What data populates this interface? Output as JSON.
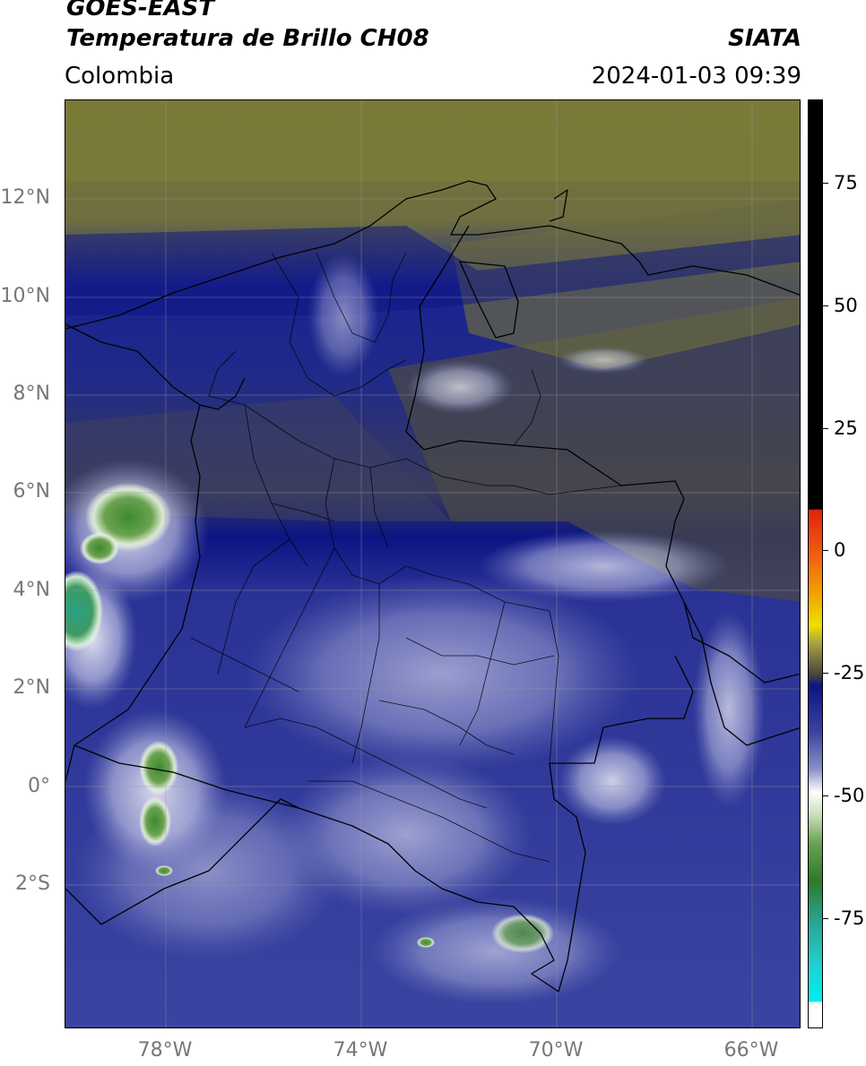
{
  "header": {
    "title_line1": "GOES-EAST",
    "title_line2": "Temperatura de Brillo CH08",
    "region": "Colombia",
    "organization": "SIATA",
    "datetime": "2024-01-03 09:39"
  },
  "map": {
    "lat_labels": [
      "12°N",
      "10°N",
      "8°N",
      "6°N",
      "4°N",
      "2°N",
      "0°",
      "2°S"
    ],
    "lon_labels": [
      "78°W",
      "74°W",
      "70°W",
      "66°W"
    ],
    "colors": {
      "warm_olive": "#7a7a3a",
      "mid_grey": "#4a4a48",
      "deep_blue": "#0c1484",
      "blue": "#3a44a0",
      "light_lavender": "#b8bce0",
      "white": "#ffffff",
      "green": "#3e8a2e",
      "teal": "#2aa08a",
      "border_line": "#000000"
    }
  },
  "colorbar": {
    "labels": [
      "75",
      "50",
      "25",
      "0",
      "-25",
      "-50",
      "-75"
    ]
  }
}
